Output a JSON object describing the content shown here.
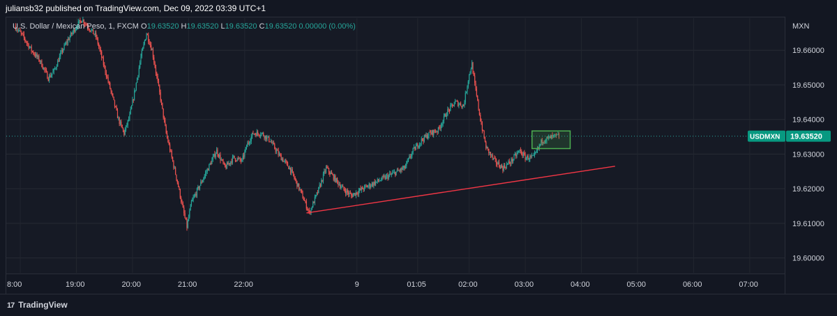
{
  "header": {
    "published_line": "juliansb32 published on TradingView.com, Dec 09, 2022 03:39 UTC+1"
  },
  "legend": {
    "symbol_line": "U.S. Dollar / Mexican Peso, 1, FXCM",
    "o_label": "O",
    "o_value": "19.63520",
    "h_label": "H",
    "h_value": "19.63520",
    "l_label": "L",
    "l_value": "19.63520",
    "c_label": "C",
    "c_value": "19.63520",
    "change": "0.00000 (0.00%)"
  },
  "footer": {
    "logo_mark": "17",
    "brand": "TradingView"
  },
  "colors": {
    "background": "#131722",
    "up": "#26a69a",
    "down": "#ef5350",
    "trendline": "#f23645",
    "highlight": "#4caf50",
    "badge": "#089981"
  },
  "chart_data": {
    "type": "candlestick",
    "currency_label": "MXN",
    "y_ticks": [
      "19.66000",
      "19.65000",
      "19.64000",
      "19.63000",
      "19.62000",
      "19.61000",
      "19.60000"
    ],
    "y_tick_values": [
      19.66,
      19.65,
      19.64,
      19.63,
      19.62,
      19.61,
      19.6
    ],
    "ylim": [
      19.5955,
      19.6695
    ],
    "x_ticks": [
      "8:00",
      "19:00",
      "20:00",
      "21:00",
      "22:00",
      "9",
      "01:05",
      "02:00",
      "03:00",
      "04:00",
      "05:00",
      "06:00",
      "07:00"
    ],
    "x_tick_hours": [
      18.0,
      19.0,
      20.0,
      21.0,
      22.0,
      24.0,
      25.083,
      26.0,
      27.0,
      28.0,
      29.0,
      30.0,
      31.0
    ],
    "last_price": {
      "symbol": "USDMXN",
      "value": "19.63520",
      "price": 19.6352
    },
    "close_path": [
      [
        17.9,
        19.667
      ],
      [
        18.05,
        19.664
      ],
      [
        18.2,
        19.66
      ],
      [
        18.35,
        19.657
      ],
      [
        18.5,
        19.652
      ],
      [
        18.6,
        19.654
      ],
      [
        18.75,
        19.66
      ],
      [
        18.85,
        19.663
      ],
      [
        19.0,
        19.667
      ],
      [
        19.1,
        19.669
      ],
      [
        19.2,
        19.667
      ],
      [
        19.35,
        19.664
      ],
      [
        19.45,
        19.658
      ],
      [
        19.55,
        19.652
      ],
      [
        19.65,
        19.646
      ],
      [
        19.75,
        19.64
      ],
      [
        19.85,
        19.636
      ],
      [
        19.95,
        19.641
      ],
      [
        20.05,
        19.649
      ],
      [
        20.15,
        19.658
      ],
      [
        20.25,
        19.665
      ],
      [
        20.35,
        19.66
      ],
      [
        20.5,
        19.646
      ],
      [
        20.6,
        19.636
      ],
      [
        20.7,
        19.629
      ],
      [
        20.8,
        19.622
      ],
      [
        20.9,
        19.614
      ],
      [
        20.97,
        19.609
      ],
      [
        21.05,
        19.616
      ],
      [
        21.2,
        19.621
      ],
      [
        21.35,
        19.626
      ],
      [
        21.5,
        19.631
      ],
      [
        21.65,
        19.626
      ],
      [
        21.8,
        19.629
      ],
      [
        21.95,
        19.628
      ],
      [
        22.05,
        19.633
      ],
      [
        22.15,
        19.636
      ],
      [
        22.3,
        19.636
      ],
      [
        22.45,
        19.634
      ],
      [
        22.6,
        19.63
      ],
      [
        22.8,
        19.626
      ],
      [
        23.0,
        19.619
      ],
      [
        23.15,
        19.613
      ],
      [
        23.3,
        19.619
      ],
      [
        23.45,
        19.626
      ],
      [
        23.6,
        19.623
      ],
      [
        23.75,
        19.62
      ],
      [
        23.9,
        19.618
      ],
      [
        24.1,
        19.62
      ],
      [
        24.35,
        19.622
      ],
      [
        24.6,
        19.624
      ],
      [
        24.85,
        19.626
      ],
      [
        25.0,
        19.631
      ],
      [
        25.15,
        19.634
      ],
      [
        25.3,
        19.636
      ],
      [
        25.45,
        19.637
      ],
      [
        25.6,
        19.642
      ],
      [
        25.75,
        19.645
      ],
      [
        25.9,
        19.644
      ],
      [
        26.0,
        19.653
      ],
      [
        26.05,
        19.656
      ],
      [
        26.1,
        19.65
      ],
      [
        26.2,
        19.64
      ],
      [
        26.3,
        19.632
      ],
      [
        26.45,
        19.628
      ],
      [
        26.6,
        19.626
      ],
      [
        26.75,
        19.628
      ],
      [
        26.9,
        19.631
      ],
      [
        27.0,
        19.629
      ],
      [
        27.15,
        19.629
      ],
      [
        27.3,
        19.634
      ],
      [
        27.5,
        19.635
      ],
      [
        27.6,
        19.6352
      ]
    ],
    "trendline": [
      [
        23.1,
        19.613
      ],
      [
        28.6,
        19.6265
      ]
    ],
    "highlight_box": {
      "x_start": 27.12,
      "x_end": 27.8,
      "y_low": 19.6316,
      "y_high": 19.6367
    }
  }
}
